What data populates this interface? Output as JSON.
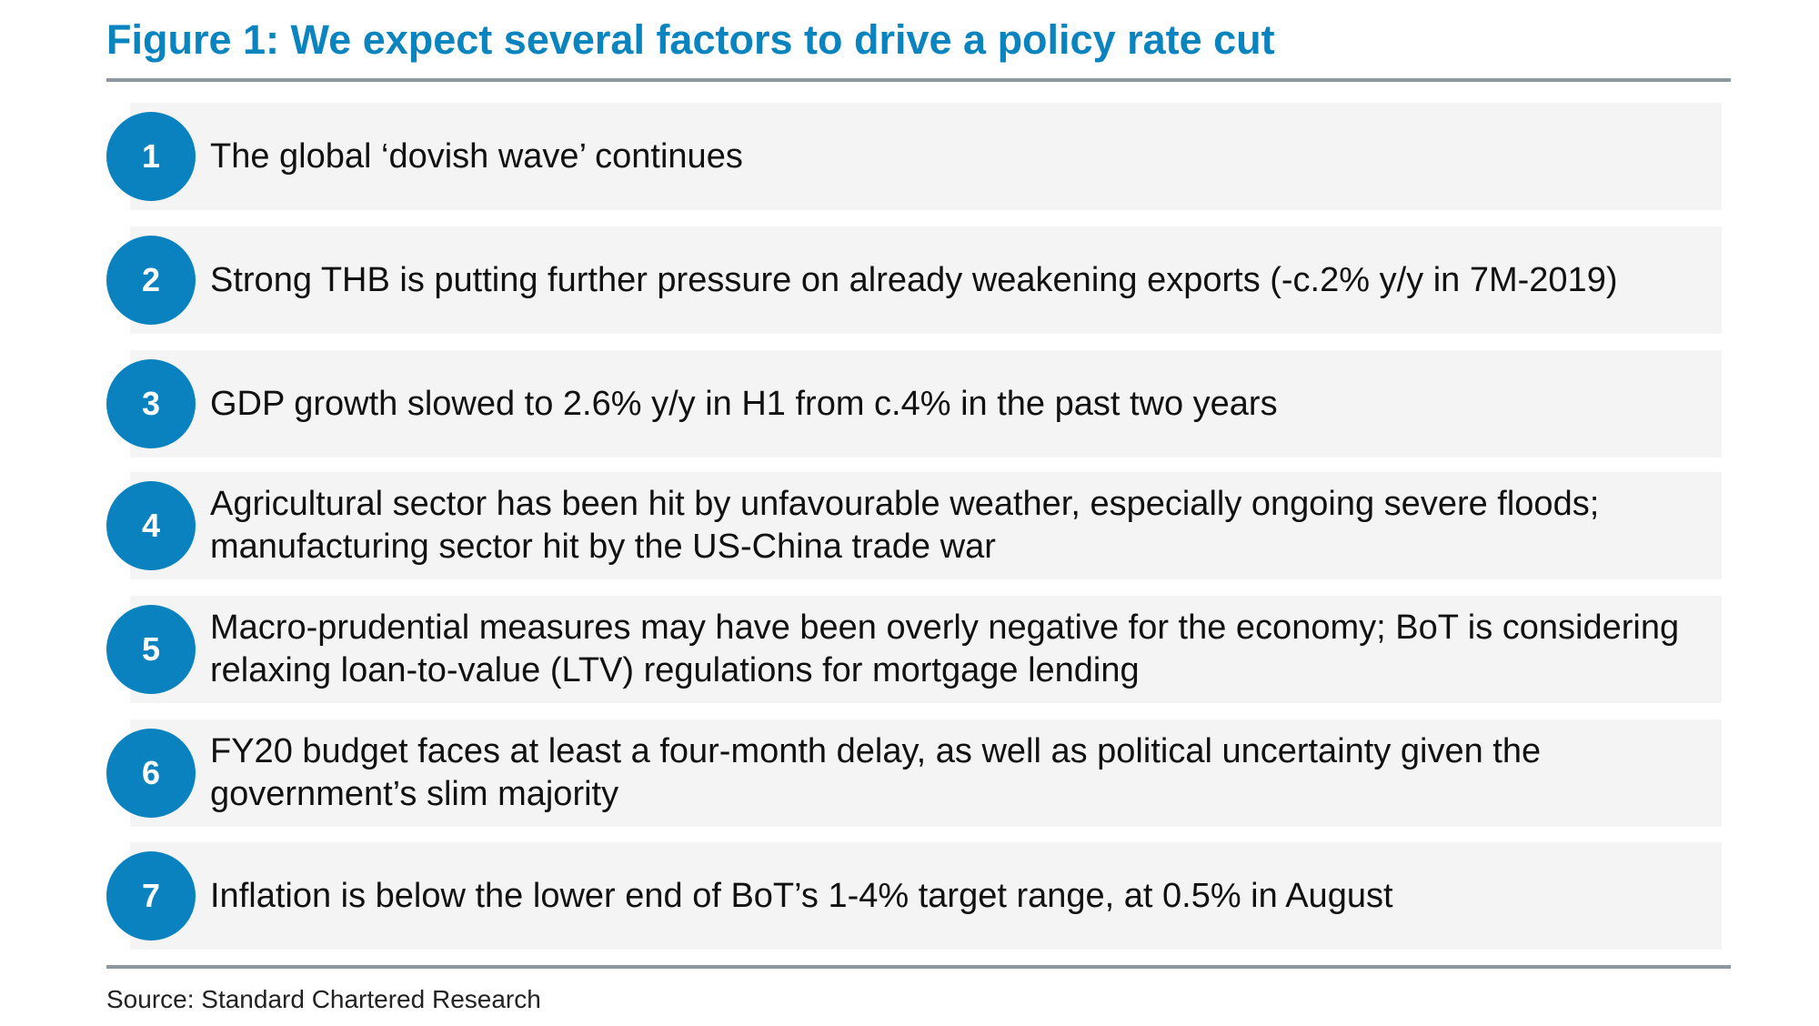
{
  "title": "Figure 1: We expect several factors to drive a policy rate cut",
  "accent_color": "#0a82c0",
  "items": [
    {
      "number": "1",
      "text": "The global ‘dovish wave’ continues"
    },
    {
      "number": "2",
      "text": "Strong THB is putting further pressure on already weakening exports (-c.2% y/y in 7M-2019)"
    },
    {
      "number": "3",
      "text": "GDP growth slowed to 2.6% y/y in H1 from c.4% in the past two years"
    },
    {
      "number": "4",
      "text": "Agricultural sector has been hit by unfavourable weather, especially ongoing severe floods; manufacturing sector hit by the US-China trade war"
    },
    {
      "number": "5",
      "text": "Macro-prudential measures may have been overly negative for the economy; BoT is considering relaxing loan-to-value (LTV) regulations for mortgage lending"
    },
    {
      "number": "6",
      "text": "FY20 budget faces at least a four-month delay, as well as political uncertainty given the government’s slim majority"
    },
    {
      "number": "7",
      "text": "Inflation is below the lower end of BoT’s 1-4% target range, at 0.5% in August"
    }
  ],
  "source": "Source: Standard Chartered Research"
}
